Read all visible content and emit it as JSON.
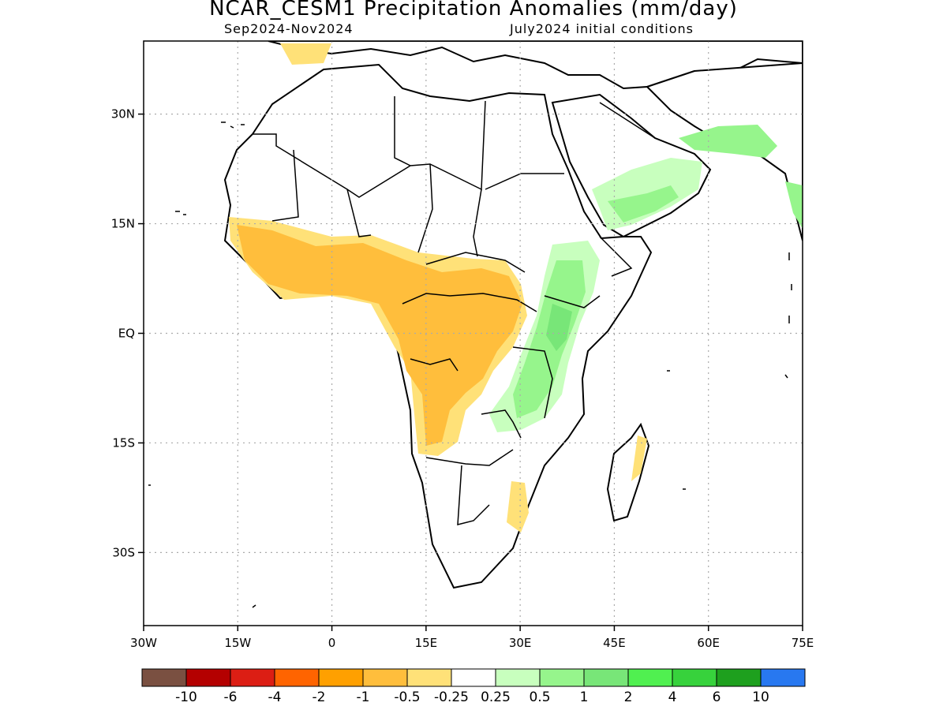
{
  "title": "NCAR_CESM1 Precipitation Anomalies (mm/day)",
  "subtitle_left": "Sep2024-Nov2024",
  "subtitle_right": "July2024 initial conditions",
  "axes": {
    "lon_ticks": [
      {
        "label": "30W",
        "lon": -30
      },
      {
        "label": "15W",
        "lon": -15
      },
      {
        "label": "0",
        "lon": 0
      },
      {
        "label": "15E",
        "lon": 15
      },
      {
        "label": "30E",
        "lon": 30
      },
      {
        "label": "45E",
        "lon": 45
      },
      {
        "label": "60E",
        "lon": 60
      },
      {
        "label": "75E",
        "lon": 75
      }
    ],
    "lat_ticks": [
      {
        "label": "30N",
        "lat": 30
      },
      {
        "label": "15N",
        "lat": 15
      },
      {
        "label": "EQ",
        "lat": 0
      },
      {
        "label": "15S",
        "lat": -15
      },
      {
        "label": "30S",
        "lat": -30
      }
    ],
    "lon_range": [
      -30,
      75
    ],
    "lat_range": [
      -40,
      40
    ],
    "grid": "dotted"
  },
  "colorbar": {
    "colors": [
      "#7a5041",
      "#b40000",
      "#dc1e14",
      "#ff6400",
      "#ffa000",
      "#ffbe3c",
      "#ffe178",
      "#ffffff",
      "#c8ffbe",
      "#96f58c",
      "#78e678",
      "#50f050",
      "#37d23c",
      "#1ea01e",
      "#2878f0"
    ],
    "labels": [
      "-10",
      "-6",
      "-4",
      "-2",
      "-1",
      "-0.5",
      "-0.25",
      "0.25",
      "0.5",
      "1",
      "2",
      "4",
      "6",
      "10"
    ]
  },
  "anomaly_regions": [
    {
      "name": "west-africa-sahel-dry",
      "category": "-0.5 to -0.25",
      "color": "#ffe178"
    },
    {
      "name": "central-africa-dry",
      "category": "-1 to -0.5",
      "color": "#ffbe3c"
    },
    {
      "name": "east-africa-wet",
      "category": "0.5 to 1",
      "color": "#96f58c"
    },
    {
      "name": "arabia-wet",
      "category": "0.25 to 0.5",
      "color": "#c8ffbe"
    }
  ]
}
